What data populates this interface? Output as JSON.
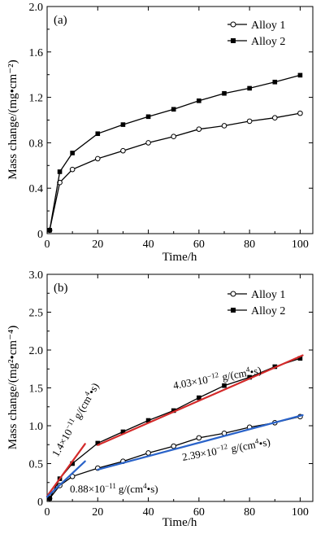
{
  "chart_data": [
    {
      "type": "line",
      "panel_label": "(a)",
      "xlabel": "Time/h",
      "ylabel": "Mass change/(mg•cm⁻²)",
      "xlim": [
        0,
        105
      ],
      "ylim": [
        0,
        2.0
      ],
      "xticks": [
        "0",
        "20",
        "40",
        "60",
        "80",
        "100"
      ],
      "yticks": [
        "0",
        "0.4",
        "0.8",
        "1.2",
        "1.6",
        "2.0"
      ],
      "legend_position": "top-right",
      "series": [
        {
          "name": "Alloy 1",
          "marker": "open-circle",
          "x": [
            1,
            5,
            10,
            20,
            30,
            40,
            50,
            60,
            70,
            80,
            90,
            100
          ],
          "y": [
            0.03,
            0.45,
            0.565,
            0.66,
            0.73,
            0.8,
            0.855,
            0.92,
            0.95,
            0.99,
            1.02,
            1.06
          ]
        },
        {
          "name": "Alloy 2",
          "marker": "filled-square",
          "x": [
            1,
            5,
            10,
            20,
            30,
            40,
            50,
            60,
            70,
            80,
            90,
            100
          ],
          "y": [
            0.03,
            0.545,
            0.71,
            0.88,
            0.96,
            1.03,
            1.095,
            1.17,
            1.235,
            1.28,
            1.335,
            1.395
          ]
        }
      ]
    },
    {
      "type": "line",
      "panel_label": "(b)",
      "xlabel": "Time/h",
      "ylabel": "Mass change/(mg²•cm⁻⁴)",
      "xlim": [
        0,
        105
      ],
      "ylim": [
        0,
        3.0
      ],
      "xticks": [
        "0",
        "20",
        "40",
        "60",
        "80",
        "100"
      ],
      "yticks": [
        "0",
        "0.5",
        "1.0",
        "1.5",
        "2.0",
        "2.5",
        "3.0"
      ],
      "legend_position": "top-right",
      "series": [
        {
          "name": "Alloy 1",
          "marker": "open-circle",
          "x": [
            1,
            5,
            10,
            20,
            30,
            40,
            50,
            60,
            70,
            80,
            90,
            100
          ],
          "y": [
            0.04,
            0.21,
            0.33,
            0.44,
            0.53,
            0.64,
            0.73,
            0.84,
            0.9,
            0.98,
            1.04,
            1.12
          ]
        },
        {
          "name": "Alloy 2",
          "marker": "filled-square",
          "x": [
            1,
            5,
            10,
            20,
            30,
            40,
            50,
            60,
            70,
            80,
            90,
            100
          ],
          "y": [
            0.04,
            0.3,
            0.5,
            0.77,
            0.92,
            1.07,
            1.2,
            1.37,
            1.53,
            1.64,
            1.78,
            1.89
          ]
        }
      ],
      "fit_lines": [
        {
          "color": "#d42a2a",
          "x": [
            0,
            15
          ],
          "y": [
            0.07,
            0.76
          ]
        },
        {
          "color": "#d42a2a",
          "x": [
            20,
            101
          ],
          "y": [
            0.745,
            1.93
          ]
        },
        {
          "color": "#2a63c9",
          "x": [
            0,
            15
          ],
          "y": [
            0.06,
            0.53
          ]
        },
        {
          "color": "#2a63c9",
          "x": [
            20,
            101
          ],
          "y": [
            0.42,
            1.14
          ]
        }
      ],
      "annotations": [
        {
          "mantissa": "1.4×10",
          "exp": "−11",
          "unit": "g/(cm",
          "unit_exp": "4",
          "unit_tail": "•s)"
        },
        {
          "mantissa": "4.03×10",
          "exp": "−12",
          "unit": "g/(cm",
          "unit_exp": "4",
          "unit_tail": "•s)"
        },
        {
          "mantissa": "2.39×10",
          "exp": "−12",
          "unit": "g/(cm",
          "unit_exp": "4",
          "unit_tail": "•s)"
        },
        {
          "mantissa": "0.88×10",
          "exp": "−11",
          "unit": "g/(cm",
          "unit_exp": "4",
          "unit_tail": "•s)"
        }
      ]
    }
  ]
}
